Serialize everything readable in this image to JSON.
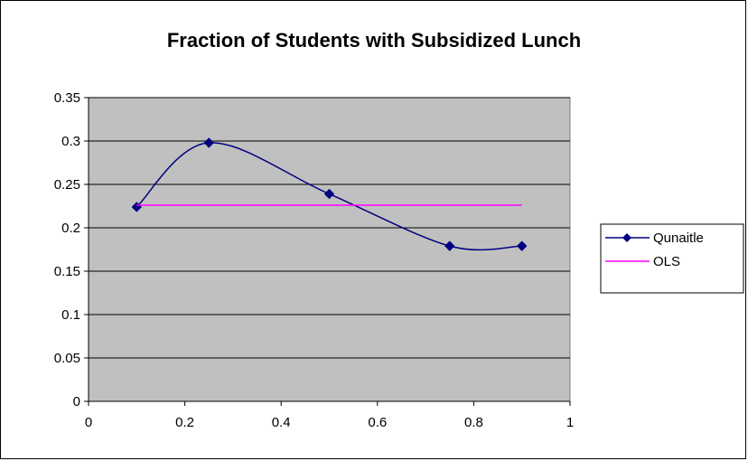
{
  "chart_data": {
    "type": "line",
    "title": "Fraction of Students with Subsidized Lunch",
    "xlabel": "",
    "ylabel": "",
    "xlim": [
      0,
      1
    ],
    "ylim": [
      0,
      0.35
    ],
    "x_ticks": [
      "0",
      "0.2",
      "0.4",
      "0.6",
      "0.8",
      "1"
    ],
    "y_ticks": [
      "0",
      "0.05",
      "0.1",
      "0.15",
      "0.2",
      "0.25",
      "0.3",
      "0.35"
    ],
    "grid": "horizontal",
    "plot_background": "#c0c0c0",
    "legend_position": "right",
    "series": [
      {
        "name": "Qunaitle",
        "color": "#000080",
        "marker": "diamond",
        "smooth": true,
        "x": [
          0.1,
          0.25,
          0.5,
          0.75,
          0.9
        ],
        "y": [
          0.224,
          0.298,
          0.239,
          0.179,
          0.179
        ]
      },
      {
        "name": "OLS",
        "color": "#ff00ff",
        "marker": "none",
        "smooth": false,
        "x": [
          0.1,
          0.25,
          0.5,
          0.75,
          0.9
        ],
        "y": [
          0.226,
          0.226,
          0.226,
          0.226,
          0.226
        ]
      }
    ]
  }
}
